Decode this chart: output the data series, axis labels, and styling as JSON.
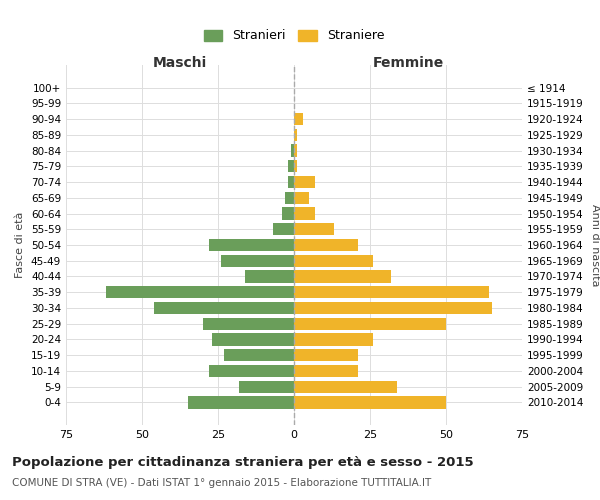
{
  "age_groups": [
    "100+",
    "95-99",
    "90-94",
    "85-89",
    "80-84",
    "75-79",
    "70-74",
    "65-69",
    "60-64",
    "55-59",
    "50-54",
    "45-49",
    "40-44",
    "35-39",
    "30-34",
    "25-29",
    "20-24",
    "15-19",
    "10-14",
    "5-9",
    "0-4"
  ],
  "birth_years": [
    "≤ 1914",
    "1915-1919",
    "1920-1924",
    "1925-1929",
    "1930-1934",
    "1935-1939",
    "1940-1944",
    "1945-1949",
    "1950-1954",
    "1955-1959",
    "1960-1964",
    "1965-1969",
    "1970-1974",
    "1975-1979",
    "1980-1984",
    "1985-1989",
    "1990-1994",
    "1995-1999",
    "2000-2004",
    "2005-2009",
    "2010-2014"
  ],
  "maschi": [
    0,
    0,
    0,
    0,
    1,
    2,
    2,
    3,
    4,
    7,
    28,
    24,
    16,
    62,
    46,
    30,
    27,
    23,
    28,
    18,
    35
  ],
  "femmine": [
    0,
    0,
    3,
    1,
    1,
    1,
    7,
    5,
    7,
    13,
    21,
    26,
    32,
    64,
    65,
    50,
    26,
    21,
    21,
    34,
    50
  ],
  "male_color": "#6a9e5a",
  "female_color": "#f0b429",
  "dashed_line_color": "#aaaaaa",
  "grid_color": "#dddddd",
  "bg_color": "#ffffff",
  "title": "Popolazione per cittadinanza straniera per età e sesso - 2015",
  "subtitle": "COMUNE DI STRA (VE) - Dati ISTAT 1° gennaio 2015 - Elaborazione TUTTITALIA.IT",
  "xlabel_left": "Maschi",
  "xlabel_right": "Femmine",
  "ylabel_left": "Fasce di età",
  "ylabel_right": "Anni di nascita",
  "legend_male": "Stranieri",
  "legend_female": "Straniere",
  "xlim": 75
}
